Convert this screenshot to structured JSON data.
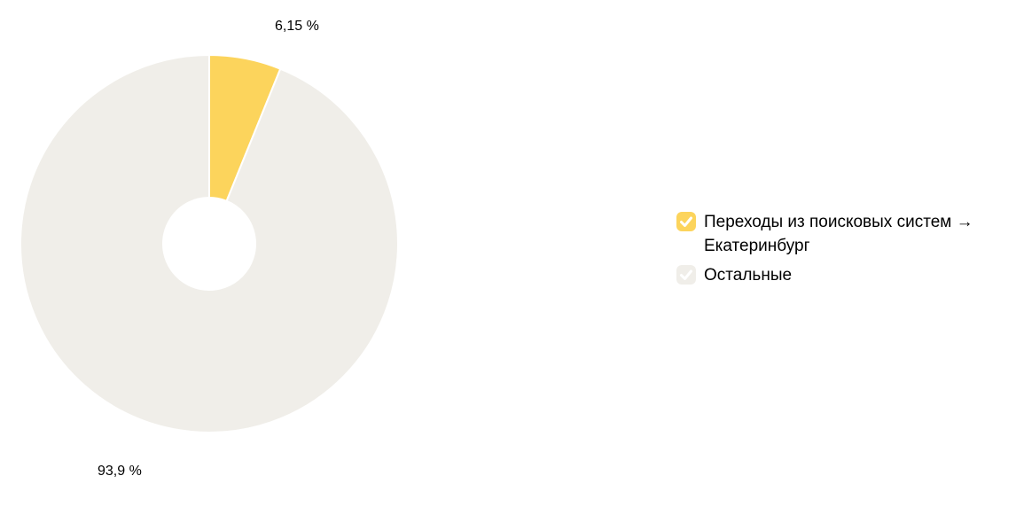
{
  "chart_data": {
    "type": "pie",
    "donut": true,
    "start_angle_deg": 0,
    "direction": "clockwise",
    "legend_position": "right",
    "series": [
      {
        "name": "Переходы из поисковых систем → Екатеринбург",
        "value": 6.15,
        "display_label": "6,15 %",
        "color": "#FCD45C"
      },
      {
        "name": "Остальные",
        "value": 93.9,
        "display_label": "93,9 %",
        "color": "#F0EEE9"
      }
    ]
  },
  "legend": {
    "items": [
      {
        "label": "Переходы из поисковых систем → Екатеринбург",
        "color": "#FCD45C",
        "checked": true,
        "check_color": "#FFFFFF"
      },
      {
        "label": "Остальные",
        "color": "#F0EEE9",
        "checked": true,
        "check_color": "#FFFFFF"
      }
    ]
  },
  "colors": {
    "background": "#FFFFFF",
    "label_text": "#000000",
    "slice_gap": "#FFFFFF"
  }
}
